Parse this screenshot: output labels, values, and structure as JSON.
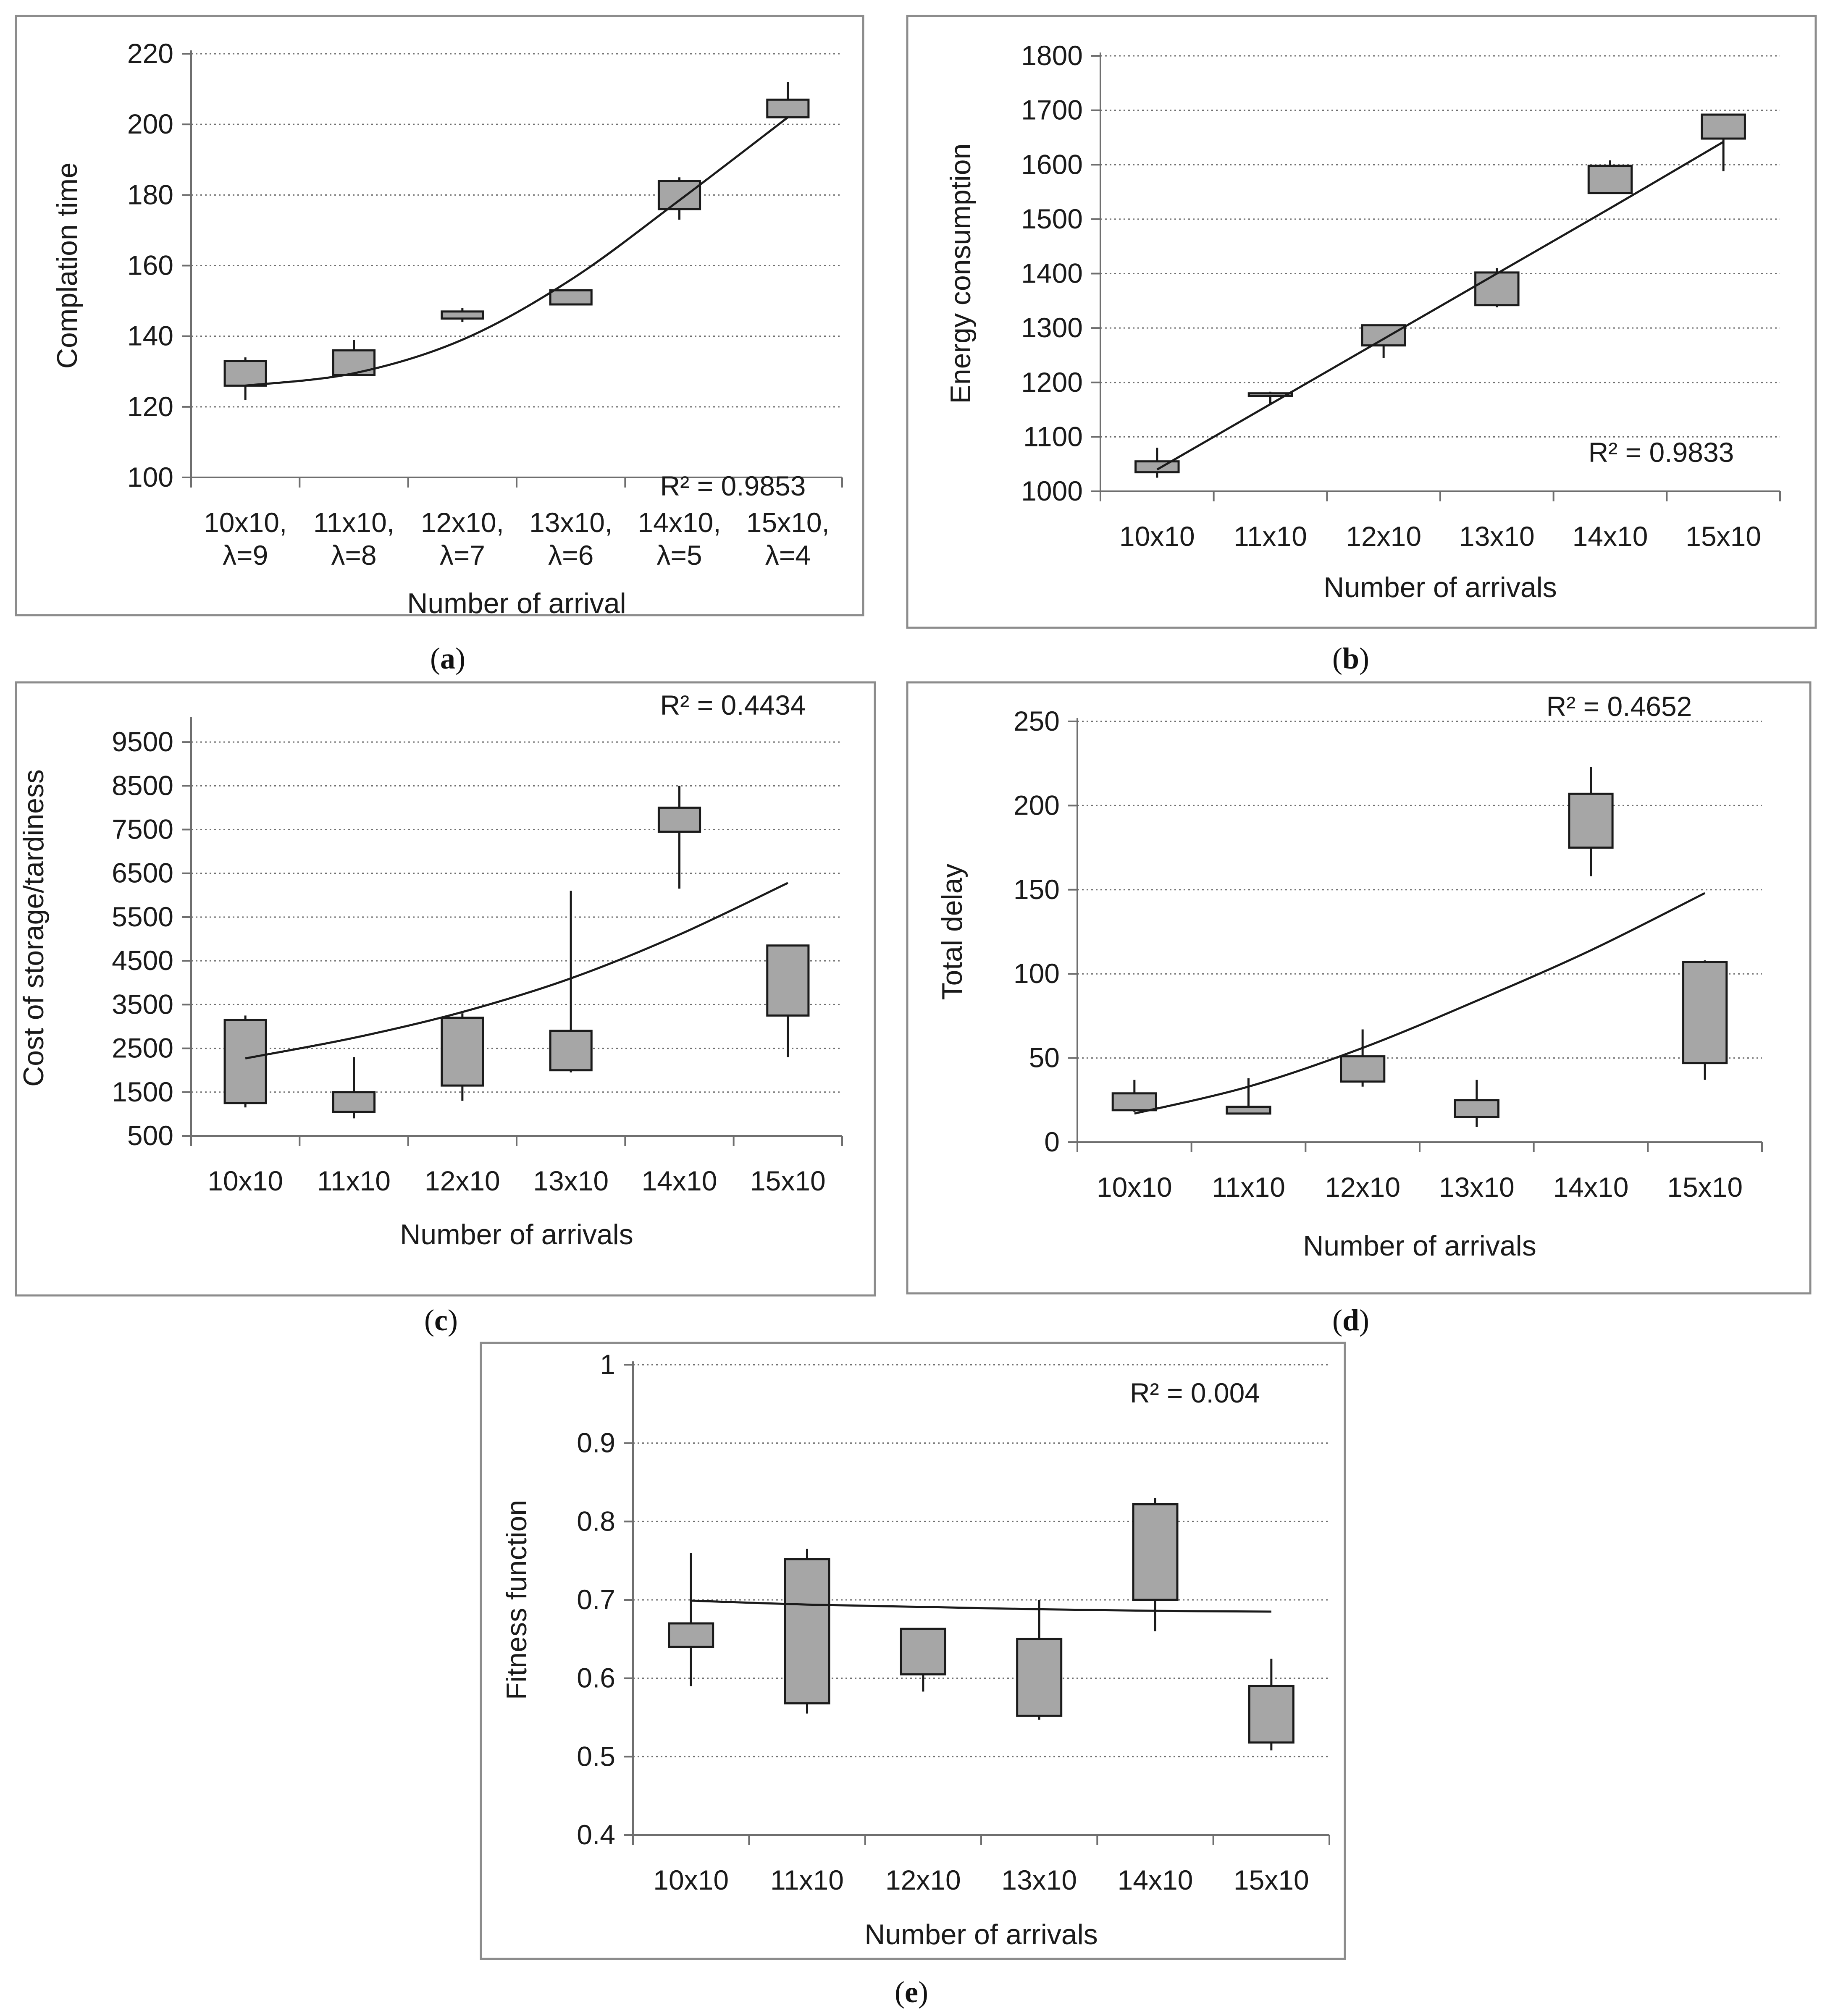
{
  "chart_data": [
    {
      "id": "a",
      "type": "box",
      "caption": "a",
      "xlabel": "Number of arrival",
      "ylabel": "Complation time",
      "ylim": [
        100,
        220
      ],
      "yticks": [
        "100",
        "120",
        "140",
        "160",
        "180",
        "200",
        "220"
      ],
      "categories": [
        [
          "10x10,",
          "λ=9"
        ],
        [
          "11x10,",
          "λ=8"
        ],
        [
          "12x10,",
          "λ=7"
        ],
        [
          "13x10,",
          "λ=6"
        ],
        [
          "14x10,",
          "λ=5"
        ],
        [
          "15x10,",
          "λ=4"
        ]
      ],
      "boxes": [
        {
          "low": 122,
          "q1": 126,
          "q3": 133,
          "high": 134
        },
        {
          "low": 129,
          "q1": 129,
          "q3": 136,
          "high": 139
        },
        {
          "low": 144,
          "q1": 145,
          "q3": 147,
          "high": 148
        },
        {
          "low": 149,
          "q1": 149,
          "q3": 153,
          "high": 153
        },
        {
          "low": 173,
          "q1": 176,
          "q3": 184,
          "high": 185
        },
        {
          "low": 202,
          "q1": 202,
          "q3": 207,
          "high": 212
        }
      ],
      "trend": [
        126,
        129.5,
        139,
        156,
        178.5,
        202
      ],
      "r2": "R² = 0.9853"
    },
    {
      "id": "b",
      "type": "box",
      "caption": "b",
      "xlabel": "Number of arrivals",
      "ylabel": "Energy consumption",
      "ylim": [
        1000,
        1800
      ],
      "yticks": [
        "1000",
        "1100",
        "1200",
        "1300",
        "1400",
        "1500",
        "1600",
        "1700",
        "1800"
      ],
      "categories": [
        [
          "10x10"
        ],
        [
          "11x10"
        ],
        [
          "12x10"
        ],
        [
          "13x10"
        ],
        [
          "14x10"
        ],
        [
          "15x10"
        ]
      ],
      "boxes": [
        {
          "low": 1025,
          "q1": 1035,
          "q3": 1055,
          "high": 1080
        },
        {
          "low": 1160,
          "q1": 1175,
          "q3": 1180,
          "high": 1183
        },
        {
          "low": 1245,
          "q1": 1268,
          "q3": 1305,
          "high": 1305
        },
        {
          "low": 1338,
          "q1": 1342,
          "q3": 1402,
          "high": 1410
        },
        {
          "low": 1548,
          "q1": 1548,
          "q3": 1598,
          "high": 1608
        },
        {
          "low": 1588,
          "q1": 1648,
          "q3": 1692,
          "high": 1692
        }
      ],
      "trend": [
        1040,
        1160,
        1280,
        1400,
        1520,
        1642
      ],
      "r2": "R² = 0.9833"
    },
    {
      "id": "c",
      "type": "box",
      "caption": "c",
      "xlabel": "Number of arrivals",
      "ylabel": "Cost of storage/tardiness",
      "ylim": [
        500,
        10000
      ],
      "yticks": [
        "500",
        "1500",
        "2500",
        "3500",
        "4500",
        "5500",
        "6500",
        "7500",
        "8500",
        "9500"
      ],
      "categories": [
        [
          "10x10"
        ],
        [
          "11x10"
        ],
        [
          "12x10"
        ],
        [
          "13x10"
        ],
        [
          "14x10"
        ],
        [
          "15x10"
        ]
      ],
      "boxes": [
        {
          "low": 1150,
          "q1": 1250,
          "q3": 3150,
          "high": 3250
        },
        {
          "low": 900,
          "q1": 1050,
          "q3": 1500,
          "high": 2300
        },
        {
          "low": 1300,
          "q1": 1650,
          "q3": 3200,
          "high": 3300
        },
        {
          "low": 1950,
          "q1": 2000,
          "q3": 2900,
          "high": 6100
        },
        {
          "low": 6150,
          "q1": 7450,
          "q3": 8000,
          "high": 8500
        },
        {
          "low": 2300,
          "q1": 3250,
          "q3": 4850,
          "high": 4850
        }
      ],
      "trend": [
        2270,
        2740,
        3330,
        4100,
        5100,
        6280
      ],
      "r2": "R² = 0.4434"
    },
    {
      "id": "d",
      "type": "box",
      "caption": "d",
      "xlabel": "Number of arrivals",
      "ylabel": "Total delay",
      "ylim": [
        0,
        250
      ],
      "yticks": [
        "0",
        "50",
        "100",
        "150",
        "200",
        "250"
      ],
      "categories": [
        [
          "10x10"
        ],
        [
          "11x10"
        ],
        [
          "12x10"
        ],
        [
          "13x10"
        ],
        [
          "14x10"
        ],
        [
          "15x10"
        ]
      ],
      "boxes": [
        {
          "low": 18,
          "q1": 19,
          "q3": 29,
          "high": 37
        },
        {
          "low": 17,
          "q1": 17,
          "q3": 21,
          "high": 38
        },
        {
          "low": 33,
          "q1": 36,
          "q3": 51,
          "high": 67
        },
        {
          "low": 9,
          "q1": 15,
          "q3": 25,
          "high": 37
        },
        {
          "low": 158,
          "q1": 175,
          "q3": 207,
          "high": 223
        },
        {
          "low": 37,
          "q1": 47,
          "q3": 107,
          "high": 108
        }
      ],
      "trend": [
        17,
        33,
        56,
        84,
        114,
        148
      ],
      "r2": "R² = 0.4652"
    },
    {
      "id": "e",
      "type": "box",
      "caption": "e",
      "xlabel": "Number of arrivals",
      "ylabel": "Fitness function",
      "ylim": [
        0.4,
        1
      ],
      "yticks": [
        "0.4",
        "0.5",
        "0.6",
        "0.7",
        "0.8",
        "0.9",
        "1"
      ],
      "categories": [
        [
          "10x10"
        ],
        [
          "11x10"
        ],
        [
          "12x10"
        ],
        [
          "13x10"
        ],
        [
          "14x10"
        ],
        [
          "15x10"
        ]
      ],
      "boxes": [
        {
          "low": 0.59,
          "q1": 0.64,
          "q3": 0.67,
          "high": 0.76
        },
        {
          "low": 0.555,
          "q1": 0.568,
          "q3": 0.752,
          "high": 0.765
        },
        {
          "low": 0.583,
          "q1": 0.605,
          "q3": 0.663,
          "high": 0.663
        },
        {
          "low": 0.547,
          "q1": 0.552,
          "q3": 0.65,
          "high": 0.7
        },
        {
          "low": 0.66,
          "q1": 0.7,
          "q3": 0.822,
          "high": 0.83
        },
        {
          "low": 0.508,
          "q1": 0.518,
          "q3": 0.59,
          "high": 0.625
        }
      ],
      "trend": [
        0.699,
        0.694,
        0.691,
        0.688,
        0.686,
        0.685
      ],
      "r2": "R² = 0.004"
    }
  ]
}
